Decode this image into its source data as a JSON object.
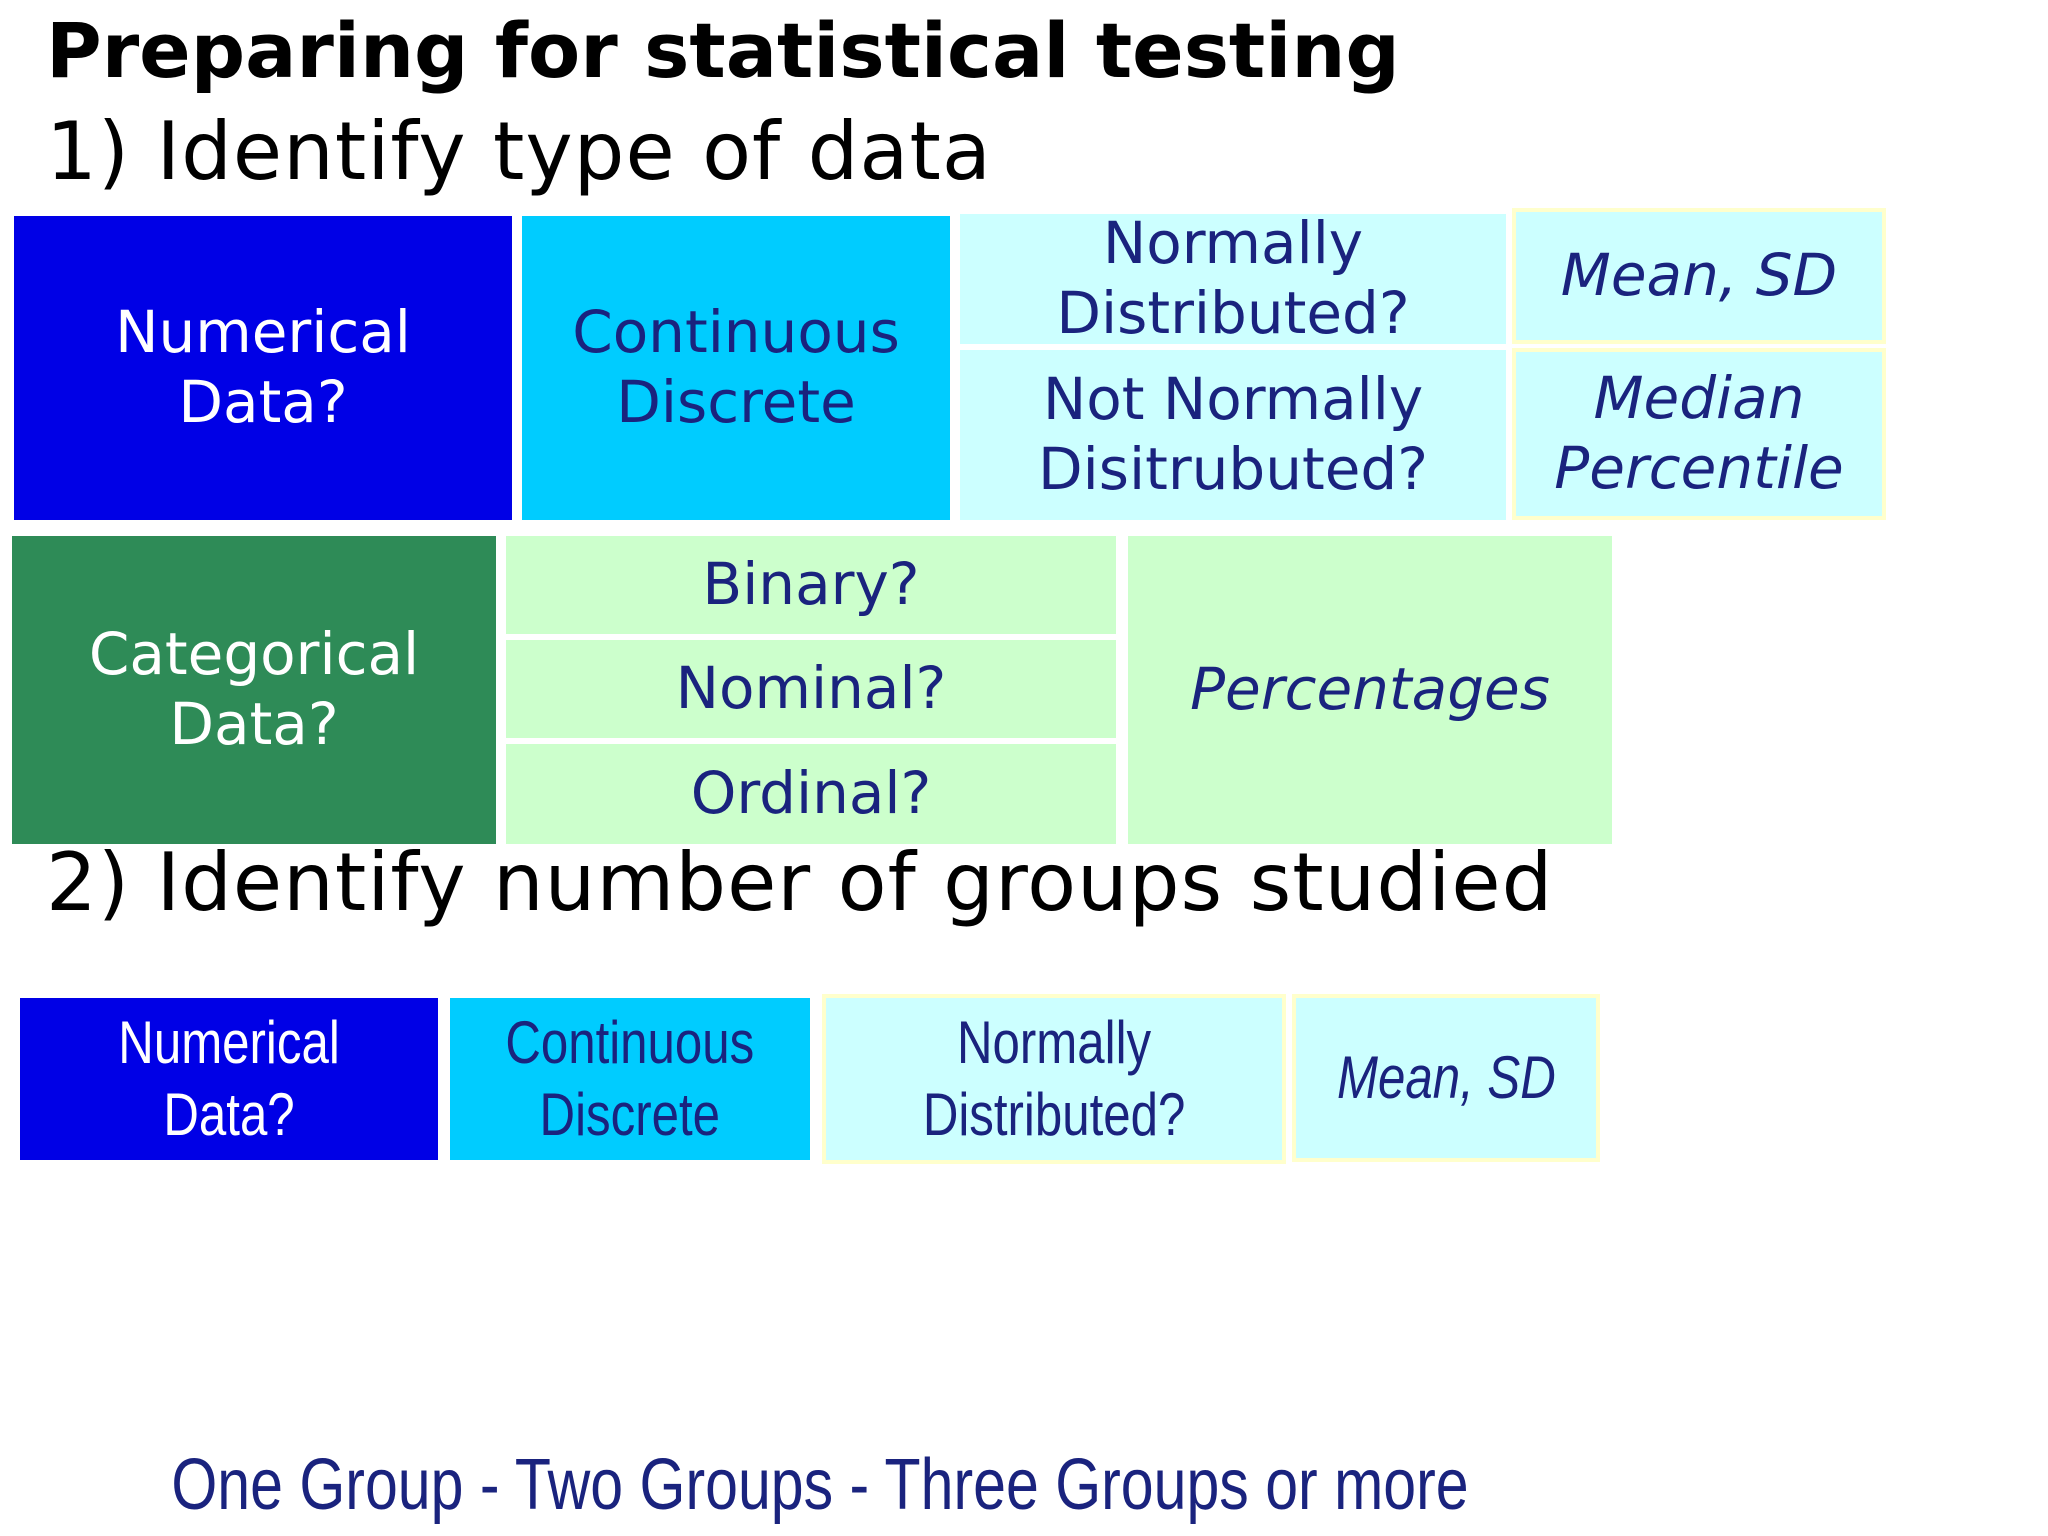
{
  "title": "Preparing for statistical testing",
  "step1": "1) Identify type of data",
  "step2": "2) Identify number of groups studied",
  "colors": {
    "dark_blue": "#0000e6",
    "cyan": "#00ccff",
    "light_cyan": "#ccffff",
    "dark_green": "#2e8b57",
    "light_green": "#ccffcc",
    "border_yellow": "#ffffcc",
    "text_navy": "#1a237e"
  },
  "diagram1": {
    "numerical": "Numerical\nData?",
    "continuous": "Continuous\nDiscrete",
    "normal": "Normally\nDistributed?",
    "mean_sd": "Mean, SD",
    "not_normal": "Not Normally\nDisitrubuted?",
    "median": "Median\nPercentile",
    "categorical": "Categorical\nData?",
    "binary": "Binary?",
    "nominal": "Nominal?",
    "ordinal": "Ordinal?",
    "percentages": "Percentages"
  },
  "diagram2": {
    "numerical": "Numerical\nData?",
    "continuous": "Continuous\nDiscrete",
    "normal": "Normally\nDistributed?",
    "mean_sd": "Mean, SD"
  },
  "groups": "One Group - Two Groups - Three Groups or more"
}
